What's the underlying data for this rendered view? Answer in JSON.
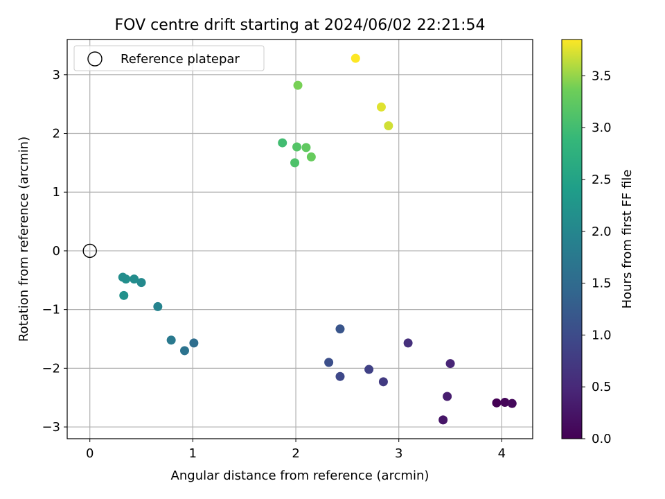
{
  "chart_data": {
    "type": "scatter",
    "title": "FOV centre drift starting at 2024/06/02 22:21:54",
    "xlabel": "Angular distance from reference (arcmin)",
    "ylabel": "Rotation from reference (arcmin)",
    "xlim": [
      -0.22,
      4.3
    ],
    "ylim": [
      -3.2,
      3.6
    ],
    "xticks": [
      0,
      1,
      2,
      3,
      4
    ],
    "xtick_labels": [
      "0",
      "1",
      "2",
      "3",
      "4"
    ],
    "yticks": [
      -3,
      -2,
      -1,
      0,
      1,
      2,
      3
    ],
    "ytick_labels": [
      "−3",
      "−2",
      "−1",
      "0",
      "1",
      "2",
      "3"
    ],
    "grid": true,
    "legend": {
      "position": "top-left",
      "entries": [
        "Reference platepar"
      ]
    },
    "reference_point": {
      "x": 0,
      "y": 0,
      "marker": "open-circle"
    },
    "colorbar": {
      "label": "Hours from first FF file",
      "colormap": "viridis",
      "range": [
        0.0,
        3.85
      ],
      "ticks": [
        0.0,
        0.5,
        1.0,
        1.5,
        2.0,
        2.5,
        3.0,
        3.5
      ],
      "tick_labels": [
        "0.0",
        "0.5",
        "1.0",
        "1.5",
        "2.0",
        "2.5",
        "3.0",
        "3.5"
      ]
    },
    "points": [
      {
        "x": 3.95,
        "y": -2.59,
        "hours": 0.0
      },
      {
        "x": 4.03,
        "y": -2.58,
        "hours": 0.05
      },
      {
        "x": 4.1,
        "y": -2.6,
        "hours": 0.1
      },
      {
        "x": 3.43,
        "y": -2.88,
        "hours": 0.25
      },
      {
        "x": 3.47,
        "y": -2.48,
        "hours": 0.35
      },
      {
        "x": 3.5,
        "y": -1.92,
        "hours": 0.45
      },
      {
        "x": 3.09,
        "y": -1.57,
        "hours": 0.6
      },
      {
        "x": 2.85,
        "y": -2.23,
        "hours": 0.75
      },
      {
        "x": 2.71,
        "y": -2.02,
        "hours": 0.85
      },
      {
        "x": 2.43,
        "y": -2.14,
        "hours": 0.95
      },
      {
        "x": 2.32,
        "y": -1.9,
        "hours": 1.05
      },
      {
        "x": 2.43,
        "y": -1.33,
        "hours": 1.15
      },
      {
        "x": 1.01,
        "y": -1.57,
        "hours": 1.55
      },
      {
        "x": 0.92,
        "y": -1.7,
        "hours": 1.65
      },
      {
        "x": 0.79,
        "y": -1.52,
        "hours": 1.75
      },
      {
        "x": 0.66,
        "y": -0.95,
        "hours": 1.95
      },
      {
        "x": 0.5,
        "y": -0.54,
        "hours": 2.05
      },
      {
        "x": 0.43,
        "y": -0.48,
        "hours": 2.1
      },
      {
        "x": 0.35,
        "y": -0.48,
        "hours": 2.15
      },
      {
        "x": 0.32,
        "y": -0.45,
        "hours": 2.12
      },
      {
        "x": 0.33,
        "y": -0.76,
        "hours": 2.18
      },
      {
        "x": 1.87,
        "y": 1.84,
        "hours": 3.0
      },
      {
        "x": 1.99,
        "y": 1.5,
        "hours": 3.1
      },
      {
        "x": 2.01,
        "y": 1.77,
        "hours": 3.15
      },
      {
        "x": 2.1,
        "y": 1.76,
        "hours": 3.25
      },
      {
        "x": 2.15,
        "y": 1.6,
        "hours": 3.3
      },
      {
        "x": 2.02,
        "y": 2.82,
        "hours": 3.4
      },
      {
        "x": 2.9,
        "y": 2.13,
        "hours": 3.7
      },
      {
        "x": 2.83,
        "y": 2.45,
        "hours": 3.75
      },
      {
        "x": 2.58,
        "y": 3.28,
        "hours": 3.85
      }
    ]
  }
}
